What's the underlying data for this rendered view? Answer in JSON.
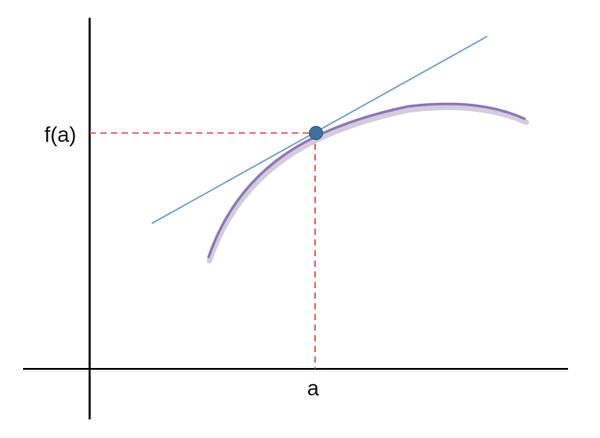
{
  "diagram": {
    "labels": {
      "fa": "f(a)",
      "a": "a"
    },
    "colors": {
      "axes": "#000000",
      "curve": "#8E78B6",
      "curve_shadow": "#C9C0D6",
      "tangent": "#6E9FC9",
      "guide": "#D9534F",
      "point": "#3F6F9E"
    }
  }
}
